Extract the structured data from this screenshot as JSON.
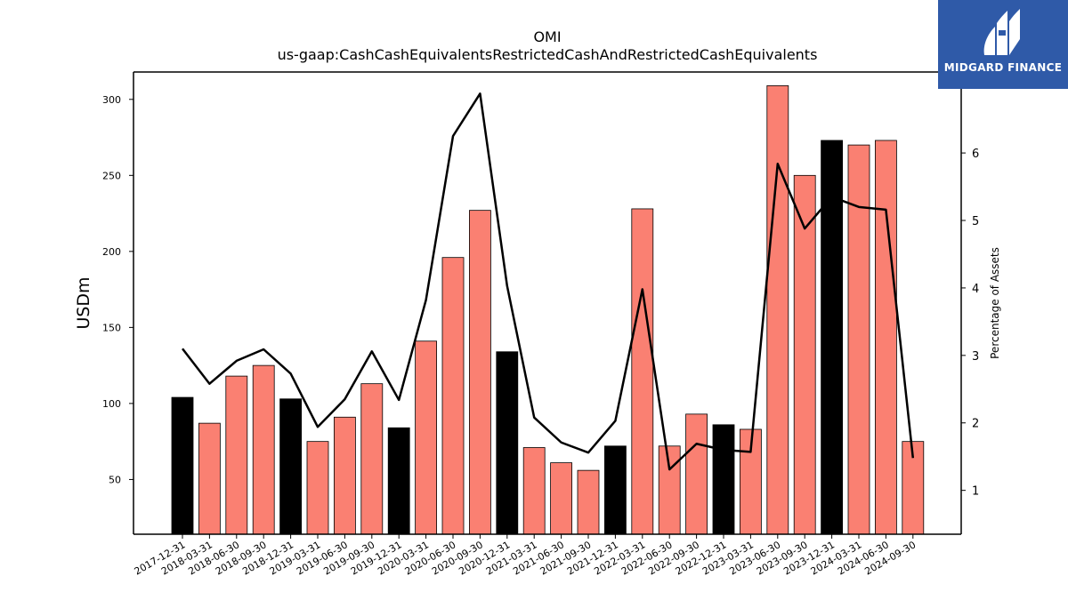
{
  "logo": {
    "text": "MIDGARD FINANCE"
  },
  "chart_data": {
    "type": "bar",
    "title": "OMI",
    "subtitle": "us-gaap:CashCashEquivalentsRestrictedCashAndRestrictedCashEquivalents",
    "ylabel": "USDm",
    "y2label": "Percentage of Assets",
    "ylim": [
      14,
      318
    ],
    "y2lim": [
      0.35,
      7.2
    ],
    "yticks": [
      50,
      100,
      150,
      200,
      250,
      300
    ],
    "y2ticks": [
      1,
      2,
      3,
      4,
      5,
      6
    ],
    "categories": [
      "2017-12-31",
      "2018-03-31",
      "2018-06-30",
      "2018-09-30",
      "2018-12-31",
      "2019-03-31",
      "2019-06-30",
      "2019-09-30",
      "2019-12-31",
      "2020-03-31",
      "2020-06-30",
      "2020-09-30",
      "2020-12-31",
      "2021-03-31",
      "2021-06-30",
      "2021-09-30",
      "2021-12-31",
      "2022-03-31",
      "2022-06-30",
      "2022-09-30",
      "2022-12-31",
      "2023-03-31",
      "2023-06-30",
      "2023-09-30",
      "2023-12-31",
      "2024-03-31",
      "2024-06-30",
      "2024-09-30"
    ],
    "series": [
      {
        "type": "bar",
        "values": [
          104,
          87,
          118,
          125,
          103,
          75,
          91,
          113,
          84,
          141,
          196,
          227,
          134,
          71,
          61,
          56,
          72,
          228,
          72,
          93,
          86,
          83,
          309,
          250,
          273,
          270,
          273,
          75
        ]
      },
      {
        "type": "line",
        "axis": "right",
        "values": [
          3.1,
          2.58,
          2.92,
          3.09,
          2.73,
          1.94,
          2.35,
          3.06,
          2.34,
          3.82,
          6.25,
          6.88,
          4.03,
          2.08,
          1.71,
          1.56,
          2.03,
          3.98,
          1.31,
          1.69,
          1.6,
          1.57,
          5.84,
          4.88,
          5.35,
          5.2,
          5.16,
          1.48
        ]
      }
    ],
    "bar_colors": {
      "quarter": "#fa8072",
      "year_end": "#000000",
      "edge": "#000000"
    },
    "line_color": "#000000",
    "grid": false,
    "legend": "none"
  }
}
